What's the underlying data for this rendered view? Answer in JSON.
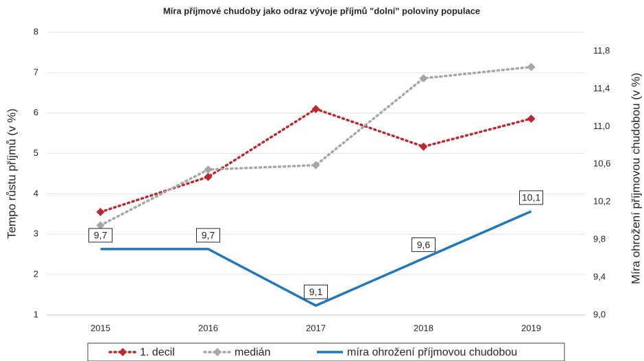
{
  "chart_data": {
    "type": "line",
    "title": "Míra příjmové chudoby jako odraz vývoje příjmů \"dolní\" poloviny populace",
    "y_label": "Tempo růstu příjmů (v %)",
    "y2_label": "Míra ohrožení příjmovou chudobou (v %)",
    "categories": [
      "2015",
      "2016",
      "2017",
      "2018",
      "2019"
    ],
    "ylim": [
      1,
      8
    ],
    "yticks": [
      1,
      2,
      3,
      4,
      5,
      6,
      7,
      8
    ],
    "y2lim": [
      9,
      12
    ],
    "y2ticks": [
      {
        "value": 9.0,
        "label": "9,0"
      },
      {
        "value": 9.4,
        "label": "9,4"
      },
      {
        "value": 9.8,
        "label": "9,8"
      },
      {
        "value": 10.2,
        "label": "10,2"
      },
      {
        "value": 10.6,
        "label": "10,6"
      },
      {
        "value": 11.0,
        "label": "11,0"
      },
      {
        "value": 11.4,
        "label": "11,4"
      },
      {
        "value": 11.8,
        "label": "11,8"
      }
    ],
    "grid": true,
    "legend": "bottom",
    "series": [
      {
        "name": "1. decil",
        "color": "#c0272d",
        "style": "dotted",
        "marker": "diamond",
        "values": [
          3.55,
          4.42,
          6.1,
          5.17,
          5.86
        ]
      },
      {
        "name": "medián",
        "color": "#a6a6a6",
        "style": "dotted",
        "marker": "diamond",
        "values": [
          3.22,
          4.6,
          4.71,
          6.86,
          7.14
        ]
      },
      {
        "name": "míra ohrožení příjmovou chudobou",
        "color": "#1f77c0",
        "style": "solid",
        "axis": "y2",
        "values": [
          9.7,
          9.7,
          9.1,
          9.6,
          10.1
        ],
        "value_labels": [
          "9,7",
          "9,7",
          "9,1",
          "9,6",
          "10,1"
        ]
      }
    ]
  }
}
